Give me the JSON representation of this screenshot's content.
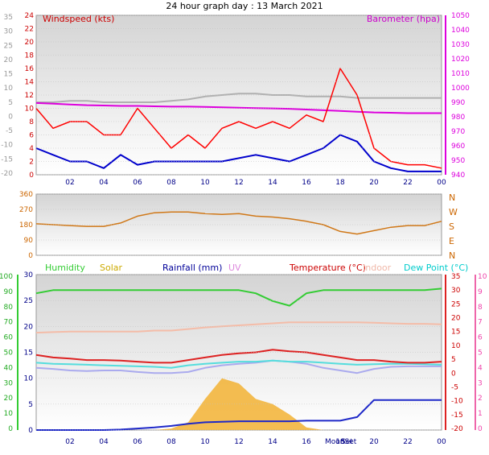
{
  "header": {
    "title": "24 hour graph day : 13 March 2021"
  },
  "colors": {
    "wind_avg": "#0000cc",
    "wind_gust": "#ff0000",
    "barometer": "#dd00dd",
    "prev_baro": "#b0b0b0",
    "wind_dir": "#d07818",
    "humidity": "#33cc33",
    "solar": "#f2b233",
    "rain": "#1e28c8",
    "temperature": "#dd2222",
    "indoor": "#f4bca8",
    "dewpoint": "#55dddd",
    "feels": "#aaaaee"
  },
  "chart_data": [
    {
      "type": "line",
      "name": "wind-baro",
      "title": "Windspeed (kts)",
      "right_title": "Barometer (hpa)",
      "x_ticks": [
        "02",
        "04",
        "06",
        "08",
        "10",
        "12",
        "14",
        "16",
        "18",
        "20",
        "22",
        "00"
      ],
      "left_outer_ticks": [
        "35",
        "30",
        "25",
        "20",
        "15",
        "10",
        "5",
        "0",
        "-5",
        "-10",
        "-15",
        "-20"
      ],
      "left_inner_ticks": [
        "24",
        "22",
        "20",
        "18",
        "16",
        "14",
        "12",
        "10",
        "8",
        "6",
        "4",
        "2",
        "0"
      ],
      "right_ticks": [
        "1050",
        "1040",
        "1030",
        "1020",
        "1010",
        "1000",
        "990",
        "980",
        "970",
        "960",
        "950",
        "940"
      ],
      "x": [
        0,
        1,
        2,
        3,
        4,
        5,
        6,
        7,
        8,
        9,
        10,
        11,
        12,
        13,
        14,
        15,
        16,
        17,
        18,
        19,
        20,
        21,
        22,
        23,
        24
      ],
      "ylim": [
        0,
        24
      ],
      "series": [
        {
          "name": "Windspeed (kts)",
          "values": [
            4,
            3,
            2,
            2,
            1,
            3,
            1.5,
            2,
            2,
            2,
            2,
            2,
            2.5,
            3,
            2.5,
            2,
            3,
            4,
            6,
            5,
            2,
            1,
            0.5,
            0.5,
            0.5
          ]
        },
        {
          "name": "",
          "values": [
            10,
            7,
            8,
            8,
            6,
            6,
            10,
            7,
            4,
            6,
            4,
            7,
            8,
            7,
            8,
            7,
            9,
            8,
            16,
            12,
            4,
            2,
            1.5,
            1.5,
            1
          ]
        },
        {
          "name": "Barometer (hpa)",
          "values": [
            989.5,
            989,
            988.5,
            988,
            987.8,
            987.5,
            987.5,
            987.2,
            987,
            987,
            986.8,
            986.5,
            986.2,
            986,
            985.8,
            985.5,
            985,
            984.5,
            984,
            983.5,
            983,
            982.8,
            982.5,
            982.5,
            982.5
          ]
        },
        {
          "name": "",
          "values": [
            990,
            990,
            991,
            991,
            990,
            990,
            990,
            990,
            991,
            992,
            994,
            995,
            996,
            996,
            995,
            995,
            994,
            994,
            994,
            993,
            993,
            993,
            993,
            993,
            993
          ]
        }
      ]
    },
    {
      "type": "line",
      "name": "wind-direction",
      "x_ticks": [],
      "left_ticks": [
        "360",
        "270",
        "180",
        "90",
        "0"
      ],
      "right_ticks": [
        "N",
        "W",
        "S",
        "E",
        "N"
      ],
      "x": [
        0,
        1,
        2,
        3,
        4,
        5,
        6,
        7,
        8,
        9,
        10,
        11,
        12,
        13,
        14,
        15,
        16,
        17,
        18,
        19,
        20,
        21,
        22,
        23,
        24
      ],
      "ylim": [
        0,
        360
      ],
      "values": [
        185,
        180,
        175,
        170,
        170,
        190,
        230,
        250,
        255,
        255,
        245,
        240,
        245,
        230,
        225,
        215,
        200,
        180,
        140,
        125,
        145,
        165,
        175,
        175,
        200
      ]
    },
    {
      "type": "line",
      "name": "temp-hum",
      "legend": [
        "Humidity",
        "Solar",
        "Rainfall (mm)",
        "UV",
        "Temperature (°C)",
        "Indoor",
        "Dew Point (°C)"
      ],
      "x_ticks": [
        "02",
        "04",
        "06",
        "08",
        "10",
        "12",
        "14",
        "16",
        "18",
        "20",
        "22",
        "00"
      ],
      "x_extra_labels": [
        "MoonSet",
        "Set"
      ],
      "left_outer_ticks": [
        "100",
        "90",
        "80",
        "70",
        "60",
        "50",
        "40",
        "30",
        "20",
        "10",
        "0"
      ],
      "left_inner_ticks": [
        "30",
        "25",
        "20",
        "15",
        "10",
        "5",
        "0"
      ],
      "right_outer_ticks": [
        "10",
        "9",
        "8",
        "7",
        "6",
        "5",
        "4",
        "3",
        "2",
        "1",
        "0"
      ],
      "right_inner_ticks": [
        "35",
        "30",
        "25",
        "20",
        "15",
        "10",
        "5",
        "0",
        "-5",
        "-10",
        "-15",
        "-20"
      ],
      "x": [
        0,
        1,
        2,
        3,
        4,
        5,
        6,
        7,
        8,
        9,
        10,
        11,
        12,
        13,
        14,
        15,
        16,
        17,
        18,
        19,
        20,
        21,
        22,
        23,
        24
      ],
      "ylim": [
        0,
        30
      ],
      "series": [
        {
          "name": "Humidity",
          "values": [
            88,
            90,
            90,
            90,
            90,
            90,
            90,
            90,
            90,
            90,
            90,
            90,
            90,
            88,
            83,
            80,
            88,
            90,
            90,
            90,
            90,
            90,
            90,
            90,
            91
          ]
        },
        {
          "name": "Temperature (°C)",
          "values": [
            14.5,
            14,
            13.8,
            13.5,
            13.5,
            13.4,
            13.2,
            13,
            13,
            13.5,
            14,
            14.5,
            14.8,
            15,
            15.5,
            15.2,
            15,
            14.5,
            14,
            13.5,
            13.5,
            13.2,
            13,
            13,
            13.2
          ]
        },
        {
          "name": "Dew Point (°C)",
          "values": [
            13,
            12.8,
            12.7,
            12.6,
            12.5,
            12.4,
            12.3,
            12.2,
            12,
            12.5,
            12.8,
            13,
            13.2,
            13.2,
            13.4,
            13.2,
            13.2,
            13,
            12.8,
            12.6,
            12.7,
            12.8,
            12.8,
            12.7,
            12.6
          ]
        },
        {
          "name": "",
          "values": [
            12,
            11.8,
            11.5,
            11.4,
            11.5,
            11.5,
            11.2,
            11,
            11,
            11.2,
            12,
            12.5,
            12.8,
            13,
            13.4,
            13.2,
            12.8,
            12,
            11.5,
            11,
            11.8,
            12.2,
            12.3,
            12.3,
            12.3
          ]
        },
        {
          "name": "Indoor",
          "values": [
            18.8,
            18.9,
            19,
            19,
            19,
            19,
            19,
            19.2,
            19.2,
            19.5,
            19.8,
            20,
            20.2,
            20.4,
            20.6,
            20.8,
            20.8,
            20.8,
            20.8,
            20.8,
            20.7,
            20.6,
            20.5,
            20.5,
            20.4
          ]
        },
        {
          "name": "Solar",
          "values": [
            0,
            0,
            0,
            0,
            0,
            0,
            0,
            0,
            0.3,
            1.5,
            6,
            10,
            9,
            6,
            5,
            3,
            0.5,
            0,
            0,
            0,
            0,
            0,
            0,
            0,
            0
          ]
        },
        {
          "name": "Rainfall (mm)",
          "values": [
            0,
            0,
            0,
            0,
            0,
            0.1,
            0.3,
            0.5,
            0.8,
            1.2,
            1.5,
            1.6,
            1.7,
            1.7,
            1.7,
            1.7,
            1.8,
            1.8,
            1.8,
            2.5,
            5.8,
            5.8,
            5.8,
            5.8,
            5.8
          ]
        }
      ]
    }
  ]
}
